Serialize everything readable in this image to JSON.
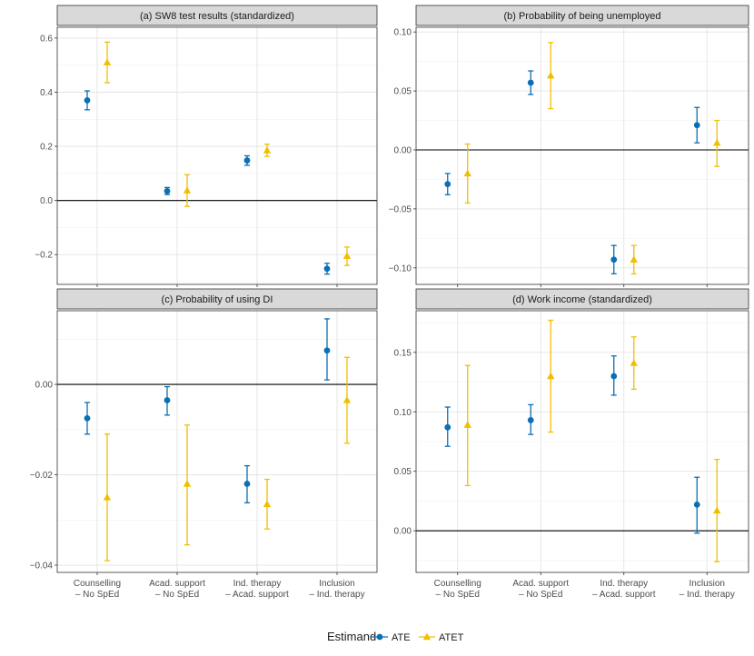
{
  "legend": {
    "title": "Estimand",
    "items": [
      {
        "label": "ATE",
        "color": "#0a6fb5",
        "shape": "circle"
      },
      {
        "label": "ATET",
        "color": "#f0bf00",
        "shape": "triangle"
      }
    ]
  },
  "chart_data": [
    {
      "type": "scatter",
      "title": "(a) SW8 test results (standardized)",
      "categories": [
        "Counselling\n– No SpEd",
        "Acad. support\n– No SpEd",
        "Ind. therapy\n– Acad. support",
        "Inclusion\n– Ind. therapy"
      ],
      "ylim": [
        -0.31,
        0.64
      ],
      "yticks": [
        -0.2,
        0.0,
        0.2,
        0.4,
        0.6
      ],
      "ytick_labels": [
        "−0.2",
        "0.0",
        "0.2",
        "0.4",
        "0.6"
      ],
      "series": [
        {
          "name": "ATE",
          "values": [
            0.37,
            0.035,
            0.148,
            -0.252
          ],
          "lo": [
            0.335,
            0.022,
            0.13,
            -0.272
          ],
          "hi": [
            0.405,
            0.048,
            0.165,
            -0.232
          ]
        },
        {
          "name": "ATET",
          "values": [
            0.51,
            0.037,
            0.185,
            -0.205
          ],
          "lo": [
            0.435,
            -0.022,
            0.163,
            -0.24
          ],
          "hi": [
            0.585,
            0.095,
            0.208,
            -0.172
          ]
        }
      ]
    },
    {
      "type": "scatter",
      "title": "(b) Probability of being unemployed",
      "categories": [
        "Counselling\n– No SpEd",
        "Acad. support\n– No SpEd",
        "Ind. therapy\n– Acad. support",
        "Inclusion\n– Ind. therapy"
      ],
      "ylim": [
        -0.114,
        0.104
      ],
      "yticks": [
        -0.1,
        -0.05,
        0.0,
        0.05,
        0.1
      ],
      "ytick_labels": [
        "−0.10",
        "−0.05",
        "0.00",
        "0.05",
        "0.10"
      ],
      "series": [
        {
          "name": "ATE",
          "values": [
            -0.029,
            0.057,
            -0.093,
            0.021
          ],
          "lo": [
            -0.038,
            0.047,
            -0.105,
            0.006
          ],
          "hi": [
            -0.02,
            0.067,
            -0.081,
            0.036
          ]
        },
        {
          "name": "ATET",
          "values": [
            -0.02,
            0.063,
            -0.093,
            0.006
          ],
          "lo": [
            -0.045,
            0.035,
            -0.105,
            -0.014
          ],
          "hi": [
            0.005,
            0.091,
            -0.081,
            0.025
          ]
        }
      ]
    },
    {
      "type": "scatter",
      "title": "(c) Probability of using DI",
      "categories": [
        "Counselling\n– No SpEd",
        "Acad. support\n– No SpEd",
        "Ind. therapy\n– Acad. support",
        "Inclusion\n– Ind. therapy"
      ],
      "ylim": [
        -0.0416,
        0.0163
      ],
      "yticks": [
        -0.04,
        -0.02,
        0.0
      ],
      "ytick_labels": [
        "−0.04",
        "−0.02",
        "0.00"
      ],
      "series": [
        {
          "name": "ATE",
          "values": [
            -0.0075,
            -0.0035,
            -0.022,
            0.0075
          ],
          "lo": [
            -0.011,
            -0.0068,
            -0.0262,
            0.001
          ],
          "hi": [
            -0.004,
            -0.0005,
            -0.018,
            0.0145
          ]
        },
        {
          "name": "ATET",
          "values": [
            -0.025,
            -0.022,
            -0.0265,
            -0.0035
          ],
          "lo": [
            -0.039,
            -0.0355,
            -0.032,
            -0.013
          ],
          "hi": [
            -0.011,
            -0.009,
            -0.021,
            0.006
          ]
        }
      ]
    },
    {
      "type": "scatter",
      "title": "(d) Work income (standardized)",
      "categories": [
        "Counselling\n– No SpEd",
        "Acad. support\n– No SpEd",
        "Ind. therapy\n– Acad. support",
        "Inclusion\n– Ind. therapy"
      ],
      "ylim": [
        -0.035,
        0.185
      ],
      "yticks": [
        0.0,
        0.05,
        0.1,
        0.15
      ],
      "ytick_labels": [
        "0.00",
        "0.05",
        "0.10",
        "0.15"
      ],
      "series": [
        {
          "name": "ATE",
          "values": [
            0.087,
            0.093,
            0.13,
            0.022
          ],
          "lo": [
            0.071,
            0.081,
            0.114,
            -0.002
          ],
          "hi": [
            0.104,
            0.106,
            0.147,
            0.045
          ]
        },
        {
          "name": "ATET",
          "values": [
            0.089,
            0.13,
            0.141,
            0.017
          ],
          "lo": [
            0.038,
            0.083,
            0.119,
            -0.026
          ],
          "hi": [
            0.139,
            0.177,
            0.163,
            0.06
          ]
        }
      ]
    }
  ]
}
